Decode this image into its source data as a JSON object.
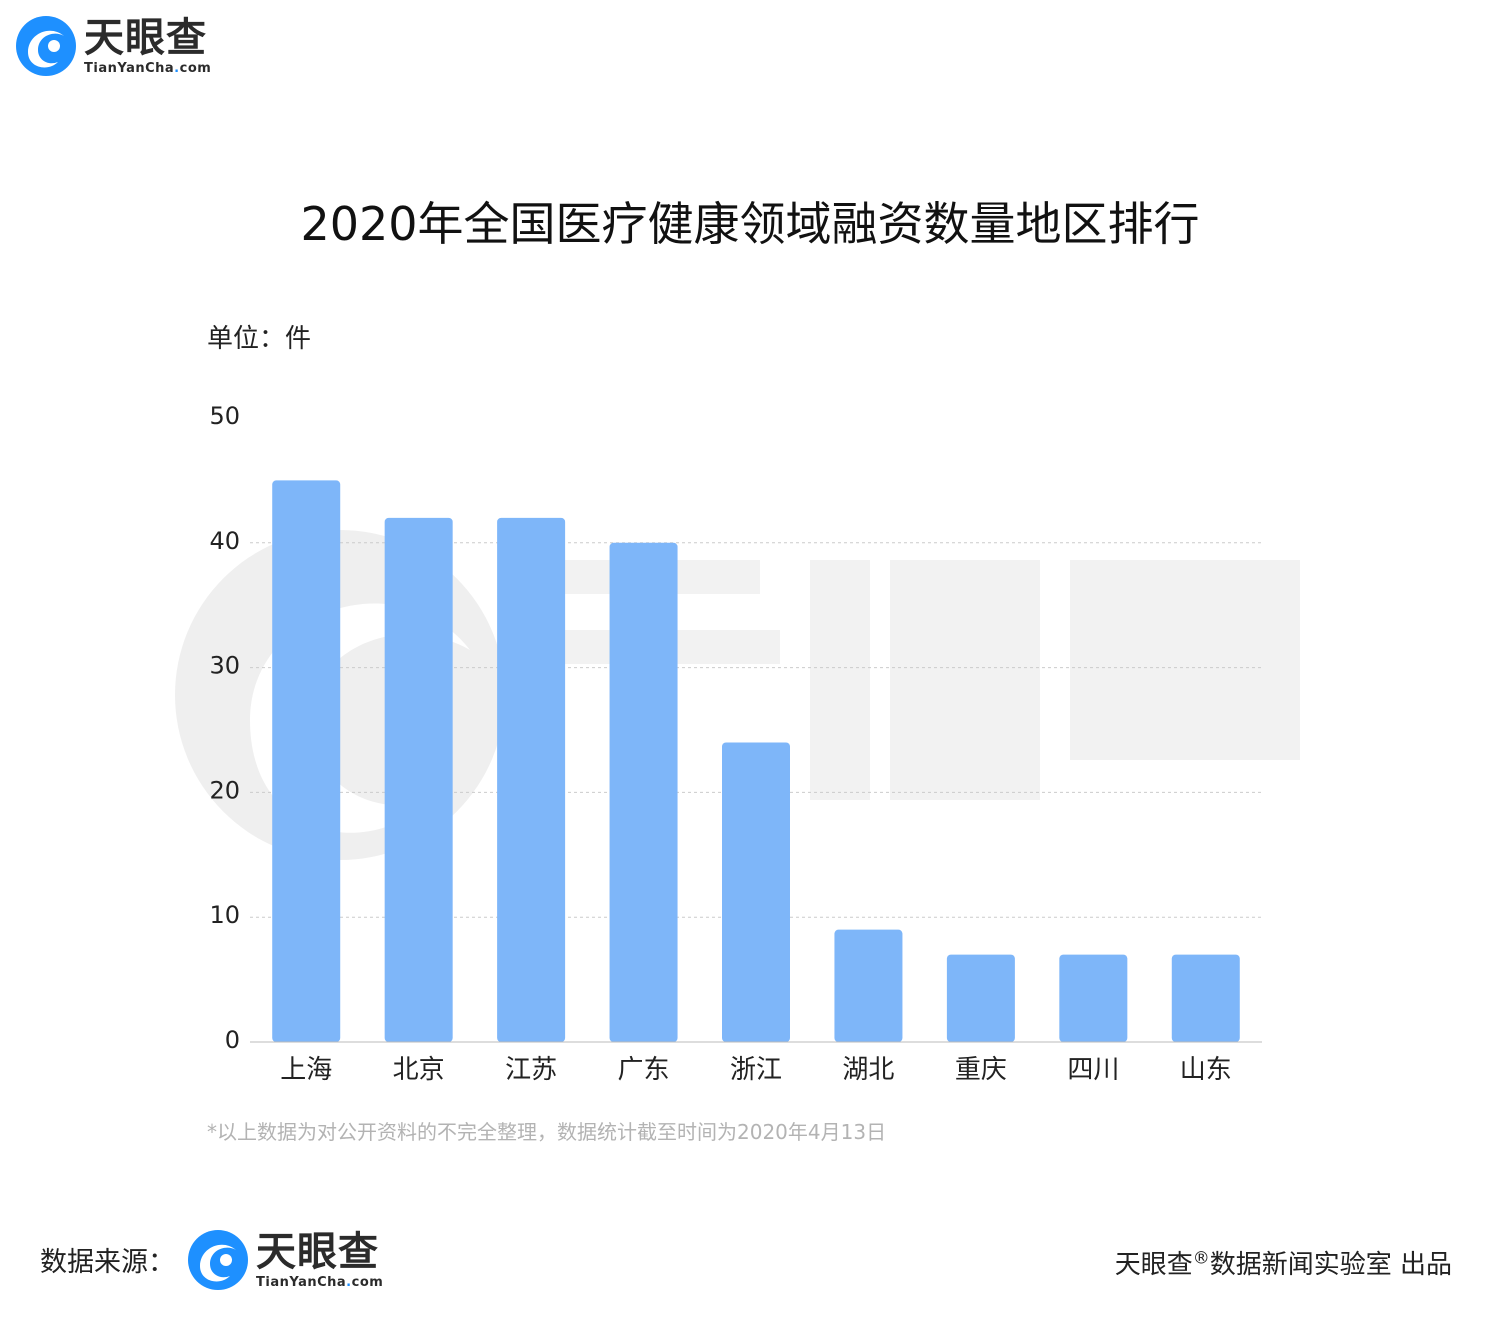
{
  "brand": {
    "cn": "天眼查",
    "en_prefix": "TianYanCha",
    "en_dot": ".",
    "en_suffix": "com",
    "color": "#1e90ff"
  },
  "title": "2020年全国医疗健康领域融资数量地区排行",
  "unit_label": "单位：件",
  "footnote": "*以上数据为对公开资料的不完全整理，数据统计截至时间为2020年4月13日",
  "source_label": "数据来源：",
  "credit": {
    "brand": "天眼查",
    "mark": "®",
    "text": "数据新闻实验室 出品"
  },
  "chart_data": {
    "type": "bar",
    "categories": [
      "上海",
      "北京",
      "江苏",
      "广东",
      "浙江",
      "湖北",
      "重庆",
      "四川",
      "山东"
    ],
    "values": [
      45,
      42,
      42,
      40,
      24,
      9,
      7,
      7,
      7
    ],
    "ylim": [
      0,
      50
    ],
    "yticks": [
      0,
      10,
      20,
      30,
      40,
      50
    ],
    "grid": true,
    "bar_color": "#7eb6f9",
    "grid_color": "#cccccc"
  }
}
